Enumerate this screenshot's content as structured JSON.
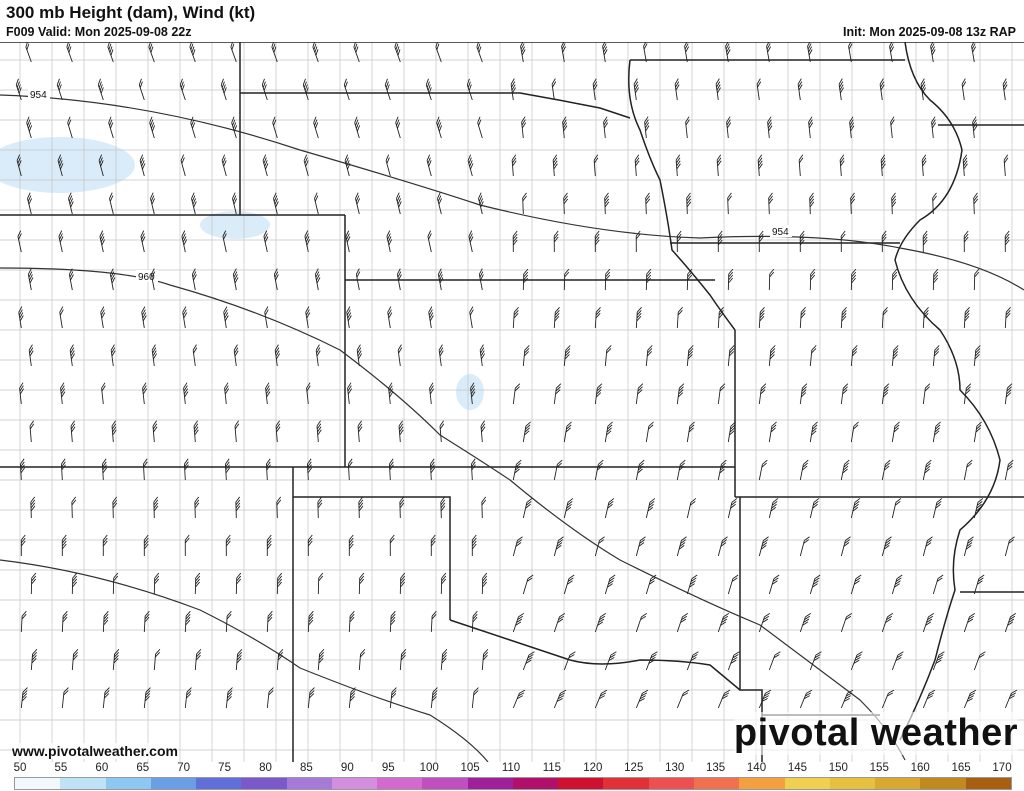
{
  "header": {
    "title": "300 mb Height (dam), Wind (kt)",
    "valid": "F009 Valid: Mon 2025-09-08 22z",
    "init": "Init: Mon 2025-09-08 13z RAP"
  },
  "map": {
    "contour_labels": [
      "954",
      "954",
      "960"
    ],
    "contour_color": "#333333",
    "border_color": "#111111",
    "county_color": "#bbbbbb",
    "shading_color": "#cfe6f7"
  },
  "footer": {
    "website": "www.pivotalweather.com",
    "logo": "pivotal weather"
  },
  "colorbar": {
    "ticks": [
      "50",
      "55",
      "60",
      "65",
      "70",
      "75",
      "80",
      "85",
      "90",
      "95",
      "100",
      "105",
      "110",
      "115",
      "120",
      "125",
      "130",
      "135",
      "140",
      "145",
      "150",
      "155",
      "160",
      "165",
      "170"
    ],
    "colors": [
      "#f2f8fc",
      "#bfe2f8",
      "#8cc8f2",
      "#6a9fe6",
      "#6070d8",
      "#7a5acb",
      "#a77ad8",
      "#d48ee0",
      "#d26ad0",
      "#c050c0",
      "#a0209c",
      "#b0106a",
      "#d01030",
      "#e03038",
      "#ec5050",
      "#f07050",
      "#f4a040",
      "#f0d050",
      "#e8c040",
      "#d8a830",
      "#c08a20",
      "#a86010"
    ]
  }
}
